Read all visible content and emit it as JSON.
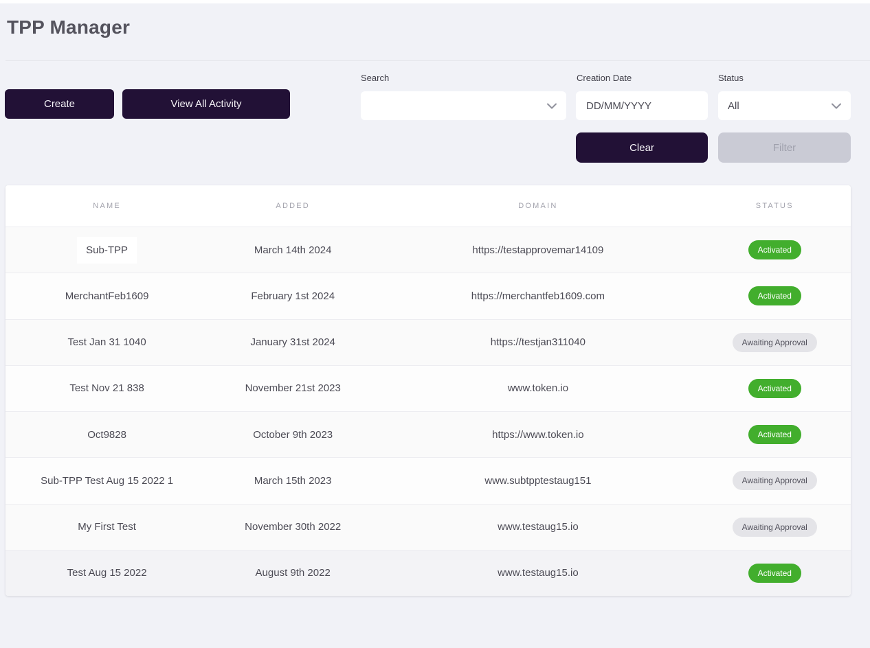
{
  "page": {
    "title": "TPP Manager"
  },
  "toolbar": {
    "create_label": "Create",
    "view_all_activity_label": "View All Activity"
  },
  "filters": {
    "search": {
      "label": "Search",
      "value": ""
    },
    "creation_date": {
      "label": "Creation Date",
      "placeholder": "DD/MM/YYYY",
      "value": ""
    },
    "status": {
      "label": "Status",
      "value": "All"
    },
    "clear_label": "Clear",
    "filter_label": "Filter"
  },
  "table": {
    "columns": [
      "NAME",
      "ADDED",
      "DOMAIN",
      "STATUS"
    ],
    "rows": [
      {
        "name": "Sub-TPP",
        "added": "March 14th 2024",
        "domain": "https://testapprovemar14109",
        "status": "Activated"
      },
      {
        "name": "MerchantFeb1609",
        "added": "February 1st 2024",
        "domain": "https://merchantfeb1609.com",
        "status": "Activated"
      },
      {
        "name": "Test Jan 31 1040",
        "added": "January 31st 2024",
        "domain": "https://testjan311040",
        "status": "Awaiting Approval"
      },
      {
        "name": "Test Nov 21 838",
        "added": "November 21st 2023",
        "domain": "www.token.io",
        "status": "Activated"
      },
      {
        "name": "Oct9828",
        "added": "October 9th 2023",
        "domain": "https://www.token.io",
        "status": "Activated"
      },
      {
        "name": "Sub-TPP Test Aug 15 2022 1",
        "added": "March 15th 2023",
        "domain": "www.subtpptestaug151",
        "status": "Awaiting Approval"
      },
      {
        "name": "My First Test",
        "added": "November 30th 2022",
        "domain": "www.testaug15.io",
        "status": "Awaiting Approval"
      },
      {
        "name": "Test Aug 15 2022",
        "added": "August 9th 2022",
        "domain": "www.testaug15.io",
        "status": "Activated"
      }
    ]
  },
  "colors": {
    "accent_dark": "#221136",
    "activated_green": "#42ae2d",
    "awaiting_bg": "#e4e4e8",
    "disabled_bg": "#cacbd5",
    "page_bg": "#f1f2f7"
  }
}
